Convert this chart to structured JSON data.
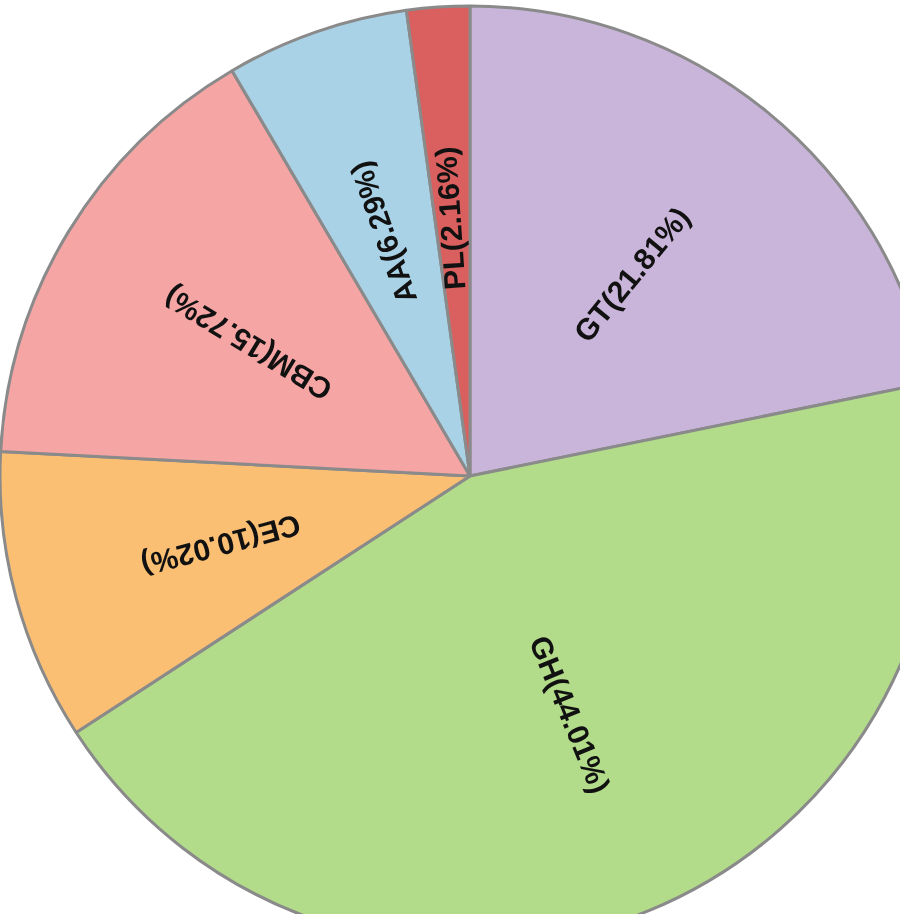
{
  "chart_data": {
    "type": "pie",
    "categories": [
      "GT(21.81%)",
      "GH(44.01%)",
      "CE(10.02%)",
      "CBM(15.72%)",
      "AA(6.29%)",
      "PL(2.16%)"
    ],
    "values": [
      21.81,
      44.01,
      10.02,
      15.72,
      6.29,
      2.16
    ],
    "colors": [
      "#c9b5da",
      "#b2dc8a",
      "#fbbf74",
      "#f6a5a5",
      "#a9d2e6",
      "#d9605e"
    ]
  }
}
